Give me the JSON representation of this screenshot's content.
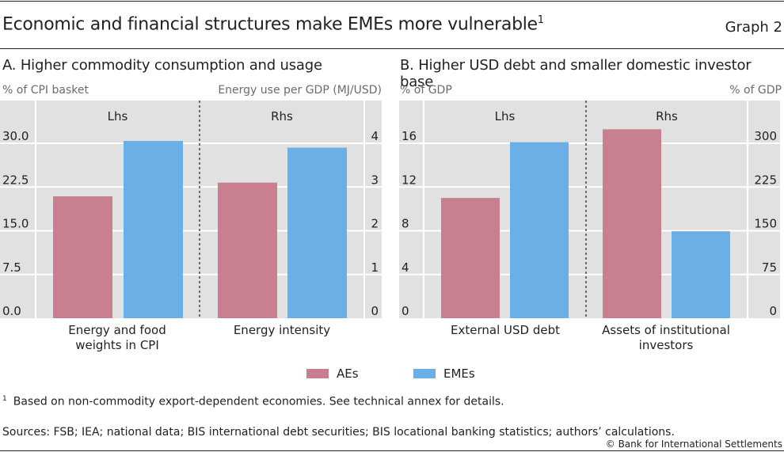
{
  "header": {
    "title": "Economic and financial structures make EMEs more vulnerable",
    "title_footnote_marker": "1",
    "graph_number": "Graph 2"
  },
  "colors": {
    "AEs": "#c88091",
    "EMEs": "#6aafe6",
    "plot_bg": "#e1e1e1",
    "grid": "#ffffff"
  },
  "legend": [
    {
      "label": "AEs",
      "color": "#c88091"
    },
    {
      "label": "EMEs",
      "color": "#6aafe6"
    }
  ],
  "footnote": {
    "marker": "1",
    "text": "Based on non-commodity export-dependent economies. See technical annex for details."
  },
  "sources": "Sources: FSB; IEA; national data; BIS international debt securities; BIS locational banking statistics; authors’ calculations.",
  "copyright": "© Bank for International Settlements",
  "chart_data": [
    {
      "type": "bar",
      "title": "A. Higher commodity consumption and usage",
      "left_axis": {
        "label": "% of CPI basket",
        "range": [
          0,
          30
        ],
        "ticks": [
          "0.0",
          "7.5",
          "15.0",
          "22.5",
          "30.0"
        ]
      },
      "right_axis": {
        "label": "Energy use per GDP (MJ/USD)",
        "range": [
          0,
          4
        ],
        "ticks": [
          "0",
          "1",
          "2",
          "3",
          "4"
        ]
      },
      "groups": [
        {
          "side_label": "Lhs",
          "axis": "left",
          "category": "Energy and food weights in CPI",
          "category_lines": [
            "Energy and food",
            "weights in CPI"
          ],
          "values": {
            "AEs": 20.9,
            "EMEs": 30.4
          }
        },
        {
          "side_label": "Rhs",
          "axis": "right",
          "category": "Energy intensity",
          "category_lines": [
            "Energy intensity"
          ],
          "values": {
            "AEs": 3.1,
            "EMEs": 3.9
          }
        }
      ],
      "series": [
        "AEs",
        "EMEs"
      ],
      "grid": true,
      "legend": "bottom-center"
    },
    {
      "type": "bar",
      "title": "B. Higher USD debt and smaller domestic investor base",
      "left_axis": {
        "label": "% of GDP",
        "range": [
          0,
          16
        ],
        "ticks": [
          "0",
          "4",
          "8",
          "12",
          "16"
        ]
      },
      "right_axis": {
        "label": "% of GDP",
        "range": [
          0,
          300
        ],
        "ticks": [
          "0",
          "75",
          "150",
          "225",
          "300"
        ]
      },
      "groups": [
        {
          "side_label": "Lhs",
          "axis": "left",
          "category": "External USD debt",
          "category_lines": [
            "External USD debt"
          ],
          "values": {
            "AEs": 11.0,
            "EMEs": 16.1
          }
        },
        {
          "side_label": "Rhs",
          "axis": "right",
          "category": "Assets of institutional investors",
          "category_lines": [
            "Assets of institutional",
            "investors"
          ],
          "values": {
            "AEs": 324,
            "EMEs": 149
          }
        }
      ],
      "series": [
        "AEs",
        "EMEs"
      ],
      "grid": true,
      "legend": "bottom-center"
    }
  ]
}
